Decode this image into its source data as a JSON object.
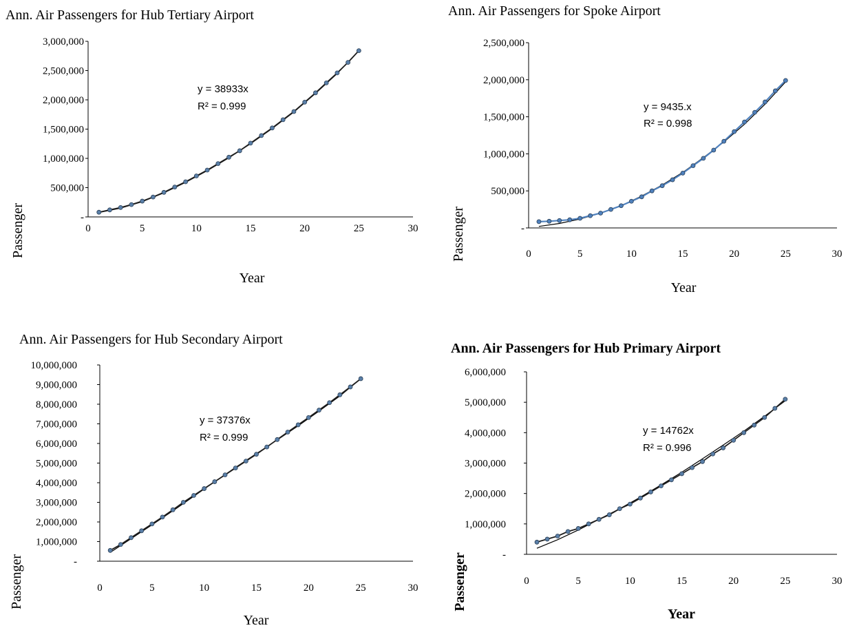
{
  "chart_data": [
    {
      "type": "scatter",
      "title": "Ann. Air Passengers for Hub Tertiary Airport",
      "xlabel": "Year",
      "ylabel": "Passenger",
      "xlim": [
        0,
        30
      ],
      "ylim": [
        0,
        3000000
      ],
      "x_ticks": [
        "0",
        "5",
        "10",
        "15",
        "20",
        "25",
        "30"
      ],
      "y_ticks": [
        "-",
        "500,000",
        "1,000,000",
        "1,500,000",
        "2,000,000",
        "2,500,000",
        "3,000,000"
      ],
      "equation": "y = 38933x",
      "r_squared": "R² = 0.999",
      "marker_color": "#5a7fa8",
      "trend_color": "#000000",
      "grid": false,
      "series": [
        {
          "x": [
            1,
            2,
            3,
            4,
            5,
            6,
            7,
            8,
            9,
            10,
            11,
            12,
            13,
            14,
            15,
            16,
            17,
            18,
            19,
            20,
            21,
            22,
            23,
            24,
            25
          ],
          "values": [
            80000,
            120000,
            160000,
            210000,
            270000,
            340000,
            420000,
            510000,
            600000,
            700000,
            800000,
            910000,
            1020000,
            1130000,
            1260000,
            1390000,
            1520000,
            1660000,
            1800000,
            1960000,
            2120000,
            2290000,
            2460000,
            2640000,
            2840000
          ]
        }
      ],
      "trend": {
        "x": [
          1,
          3,
          5,
          7,
          9,
          11,
          13,
          15,
          17,
          19,
          21,
          23,
          25
        ],
        "values": [
          75000,
          150000,
          260000,
          410000,
          590000,
          790000,
          1010000,
          1250000,
          1510000,
          1790000,
          2110000,
          2450000,
          2840000
        ]
      }
    },
    {
      "type": "scatter",
      "title": "Ann. Air Passengers for Spoke Airport",
      "xlabel": "Year",
      "ylabel": "Passenger",
      "xlim": [
        0,
        30
      ],
      "ylim": [
        0,
        2500000
      ],
      "x_ticks": [
        "0",
        "5",
        "10",
        "15",
        "20",
        "25",
        "30"
      ],
      "y_ticks": [
        "-",
        "500,000",
        "1,000,000",
        "1,500,000",
        "2,000,000",
        "2,500,000"
      ],
      "equation": "y = 9435.x",
      "r_squared": "R² = 0.998",
      "marker_color": "#4f81bd",
      "trend_color": "#000000",
      "grid": false,
      "series": [
        {
          "x": [
            1,
            2,
            3,
            4,
            5,
            6,
            7,
            8,
            9,
            10,
            11,
            12,
            13,
            14,
            15,
            16,
            17,
            18,
            19,
            20,
            21,
            22,
            23,
            24,
            25
          ],
          "values": [
            85000,
            90000,
            100000,
            110000,
            130000,
            165000,
            200000,
            250000,
            300000,
            360000,
            420000,
            500000,
            570000,
            650000,
            740000,
            840000,
            940000,
            1050000,
            1170000,
            1300000,
            1430000,
            1560000,
            1700000,
            1850000,
            1990000
          ]
        }
      ],
      "trend": {
        "x": [
          1,
          3,
          5,
          7,
          9,
          11,
          13,
          15,
          17,
          19,
          21,
          23,
          25
        ],
        "values": [
          20000,
          60000,
          120000,
          200000,
          300000,
          430000,
          580000,
          750000,
          950000,
          1160000,
          1400000,
          1670000,
          1970000
        ]
      }
    },
    {
      "type": "scatter",
      "title": "Ann. Air Passengers for Hub Secondary Airport",
      "xlabel": "Year",
      "ylabel": "Passenger",
      "xlim": [
        0,
        30
      ],
      "ylim": [
        0,
        10000000
      ],
      "x_ticks": [
        "0",
        "5",
        "10",
        "15",
        "20",
        "25",
        "30"
      ],
      "y_ticks": [
        "-",
        "1,000,000",
        "2,000,000",
        "3,000,000",
        "4,000,000",
        "5,000,000",
        "6,000,000",
        "7,000,000",
        "8,000,000",
        "9,000,000",
        "10,000,000"
      ],
      "equation": "y = 37376x",
      "r_squared": "R² = 0.999",
      "marker_color": "#5a7fa8",
      "trend_color": "#000000",
      "grid": false,
      "series": [
        {
          "x": [
            1,
            2,
            3,
            4,
            5,
            6,
            7,
            8,
            9,
            10,
            11,
            12,
            13,
            14,
            15,
            16,
            17,
            18,
            19,
            20,
            21,
            22,
            23,
            24,
            25
          ],
          "values": [
            550000,
            850000,
            1200000,
            1550000,
            1900000,
            2250000,
            2620000,
            3000000,
            3350000,
            3700000,
            4050000,
            4400000,
            4750000,
            5100000,
            5450000,
            5820000,
            6200000,
            6580000,
            6950000,
            7320000,
            7700000,
            8080000,
            8480000,
            8880000,
            9300000
          ]
        }
      ],
      "trend": {
        "x": [
          1,
          3,
          5,
          7,
          9,
          11,
          13,
          15,
          17,
          19,
          21,
          23,
          25
        ],
        "values": [
          450000,
          1150000,
          1850000,
          2570000,
          3310000,
          4050000,
          4780000,
          5480000,
          6180000,
          6900000,
          7650000,
          8420000,
          9300000
        ]
      }
    },
    {
      "type": "scatter",
      "title": "Ann. Air Passengers for Hub Primary Airport",
      "xlabel": "Year",
      "ylabel": "Passenger",
      "xlim": [
        0,
        30
      ],
      "ylim": [
        0,
        6000000
      ],
      "x_ticks": [
        "0",
        "5",
        "10",
        "15",
        "20",
        "25",
        "30"
      ],
      "y_ticks": [
        "-",
        "1,000,000",
        "2,000,000",
        "3,000,000",
        "4,000,000",
        "5,000,000",
        "6,000,000"
      ],
      "equation": "y = 14762x",
      "r_squared": "R² = 0.996",
      "marker_color": "#5a7fa8",
      "trend_color": "#000000",
      "grid": false,
      "series": [
        {
          "x": [
            1,
            2,
            3,
            4,
            5,
            6,
            7,
            8,
            9,
            10,
            11,
            12,
            13,
            14,
            15,
            16,
            17,
            18,
            19,
            20,
            21,
            22,
            23,
            24,
            25
          ],
          "values": [
            400000,
            500000,
            600000,
            750000,
            850000,
            1000000,
            1150000,
            1300000,
            1500000,
            1650000,
            1850000,
            2050000,
            2250000,
            2450000,
            2650000,
            2850000,
            3050000,
            3300000,
            3500000,
            3750000,
            4000000,
            4250000,
            4500000,
            4800000,
            5100000
          ]
        }
      ],
      "trend": {
        "x": [
          1,
          3,
          5,
          7,
          9,
          11,
          13,
          15,
          17,
          19,
          21,
          23,
          25
        ],
        "values": [
          200000,
          480000,
          800000,
          1150000,
          1500000,
          1880000,
          2280000,
          2700000,
          3140000,
          3590000,
          4050000,
          4540000,
          5050000
        ]
      }
    }
  ]
}
